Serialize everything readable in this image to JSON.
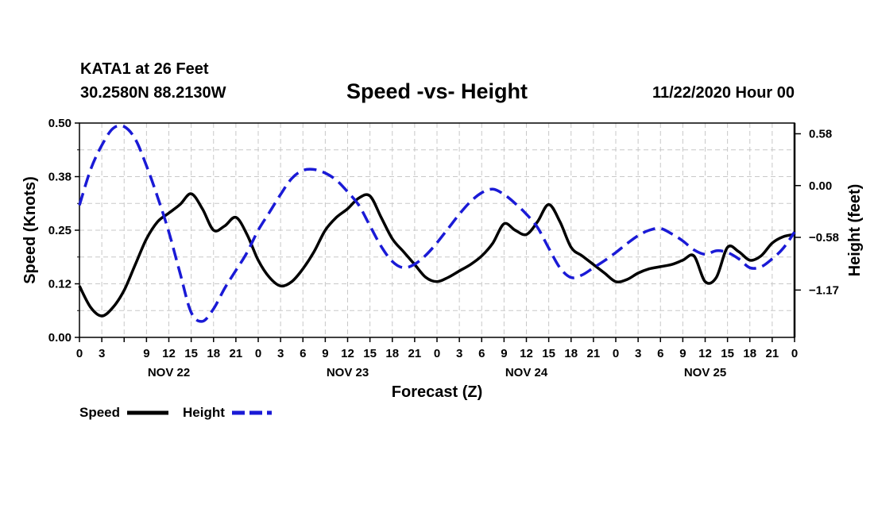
{
  "header": {
    "station": "KATA1 at 26 Feet",
    "coords": "30.2580N 88.2130W",
    "title": "Speed -vs- Height",
    "date": "11/22/2020 Hour 00"
  },
  "colors": {
    "speed": "#000000",
    "height": "#1a1ad6",
    "grid": "#c8c8c8"
  },
  "chart_data": {
    "type": "line",
    "title": "Speed -vs- Height",
    "xlabel": "Forecast (Z)",
    "ylabel": "Speed (Knots)",
    "ylabel_right": "Height (feet)",
    "x_range_hours": [
      0,
      96
    ],
    "ylim": [
      0,
      0.5
    ],
    "ylim_right": [
      -1.7,
      0.7
    ],
    "y_ticks": [
      "0.00",
      "0.12",
      "0.25",
      "0.38",
      "0.50"
    ],
    "y_ticks_right": [
      {
        "value": 0.58,
        "label": "0.58"
      },
      {
        "value": 0.0,
        "label": "0.00"
      },
      {
        "value": -0.58,
        "label": "−0.58"
      },
      {
        "value": -1.17,
        "label": "−1.17"
      }
    ],
    "x_tick_labels": [
      "0",
      "3",
      "9",
      "12",
      "15",
      "18",
      "21",
      "0",
      "3",
      "6",
      "9",
      "12",
      "15",
      "18",
      "21",
      "0",
      "3",
      "6",
      "9",
      "12",
      "15",
      "18",
      "21",
      "0",
      "3",
      "6",
      "9",
      "12",
      "15",
      "18",
      "21",
      "0"
    ],
    "day_labels": [
      "NOV 22",
      "NOV 23",
      "NOV 24",
      "NOV 25"
    ],
    "legend": [
      "Speed",
      "Height"
    ],
    "series": [
      {
        "name": "Speed",
        "axis": "left",
        "style": "solid",
        "x": [
          0,
          1.5,
          3,
          4.5,
          6,
          7.5,
          9,
          10.5,
          12,
          13.5,
          15,
          16.5,
          18,
          19.5,
          21,
          22.5,
          24,
          25.5,
          27,
          28.5,
          30,
          31.5,
          33,
          34.5,
          36,
          37.5,
          39,
          40.5,
          42,
          43.5,
          45,
          46.5,
          48,
          49.5,
          51,
          52.5,
          54,
          55.5,
          57,
          58.5,
          60,
          61.5,
          63,
          64.5,
          66,
          67.5,
          69,
          70.5,
          72,
          73.5,
          75,
          76.5,
          78,
          79.5,
          81,
          82.5,
          84,
          85.5,
          87,
          88.5,
          90,
          91.5,
          93,
          94.5,
          96
        ],
        "values": [
          0.12,
          0.07,
          0.05,
          0.07,
          0.11,
          0.17,
          0.23,
          0.27,
          0.29,
          0.31,
          0.335,
          0.3,
          0.25,
          0.26,
          0.28,
          0.24,
          0.18,
          0.14,
          0.12,
          0.13,
          0.16,
          0.2,
          0.25,
          0.28,
          0.3,
          0.325,
          0.33,
          0.28,
          0.23,
          0.2,
          0.17,
          0.14,
          0.13,
          0.14,
          0.155,
          0.17,
          0.19,
          0.22,
          0.265,
          0.25,
          0.24,
          0.27,
          0.31,
          0.27,
          0.21,
          0.19,
          0.17,
          0.15,
          0.13,
          0.135,
          0.15,
          0.16,
          0.165,
          0.17,
          0.18,
          0.19,
          0.13,
          0.14,
          0.21,
          0.2,
          0.18,
          0.19,
          0.22,
          0.235,
          0.24
        ]
      },
      {
        "name": "Height",
        "axis": "right",
        "style": "dashed",
        "x": [
          0,
          1.5,
          3,
          4.5,
          6,
          7.5,
          9,
          10.5,
          12,
          13.5,
          15,
          16.5,
          18,
          19.5,
          21,
          22.5,
          24,
          25.5,
          27,
          28.5,
          30,
          31.5,
          33,
          34.5,
          36,
          37.5,
          39,
          40.5,
          42,
          43.5,
          45,
          46.5,
          48,
          49.5,
          51,
          52.5,
          54,
          55.5,
          57,
          58.5,
          60,
          61.5,
          63,
          64.5,
          66,
          67.5,
          69,
          70.5,
          72,
          73.5,
          75,
          76.5,
          78,
          79.5,
          81,
          82.5,
          84,
          85.5,
          87,
          88.5,
          90,
          91.5,
          93,
          94.5,
          96
        ],
        "values": [
          -0.22,
          0.18,
          0.45,
          0.64,
          0.66,
          0.52,
          0.22,
          -0.13,
          -0.52,
          -0.98,
          -1.42,
          -1.52,
          -1.38,
          -1.15,
          -0.95,
          -0.75,
          -0.5,
          -0.3,
          -0.1,
          0.08,
          0.17,
          0.18,
          0.14,
          0.06,
          -0.07,
          -0.22,
          -0.45,
          -0.68,
          -0.85,
          -0.92,
          -0.88,
          -0.78,
          -0.64,
          -0.48,
          -0.32,
          -0.18,
          -0.08,
          -0.04,
          -0.1,
          -0.2,
          -0.32,
          -0.47,
          -0.7,
          -0.92,
          -1.03,
          -1.0,
          -0.92,
          -0.84,
          -0.75,
          -0.65,
          -0.56,
          -0.5,
          -0.48,
          -0.54,
          -0.62,
          -0.72,
          -0.77,
          -0.73,
          -0.75,
          -0.82,
          -0.92,
          -0.91,
          -0.82,
          -0.7,
          -0.52
        ]
      }
    ]
  }
}
